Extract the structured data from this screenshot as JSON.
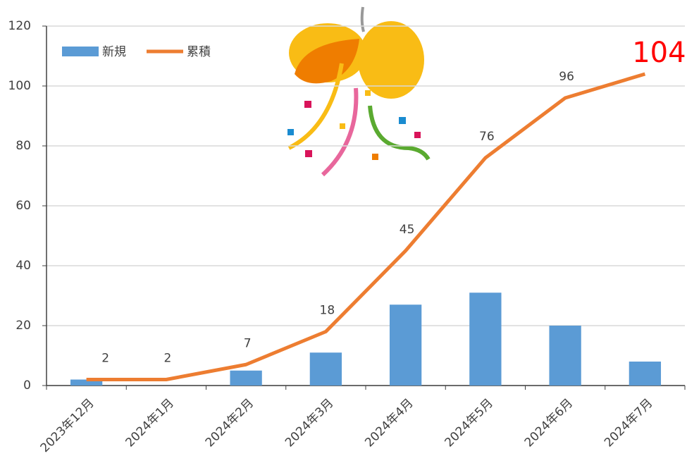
{
  "chart_data": {
    "type": "combo",
    "categories": [
      "2023年12月",
      "2024年1月",
      "2024年2月",
      "2024年3月",
      "2024年4月",
      "2024年5月",
      "2024年6月",
      "2024年7月"
    ],
    "series": [
      {
        "name": "新規",
        "type": "bar",
        "color": "#5b9bd5",
        "values": [
          2,
          0,
          5,
          11,
          27,
          31,
          20,
          8
        ]
      },
      {
        "name": "累積",
        "type": "line",
        "color": "#ed7d31",
        "values": [
          2,
          2,
          7,
          18,
          45,
          76,
          96,
          104
        ]
      }
    ],
    "ylim": [
      0,
      120
    ],
    "yticks": [
      0,
      20,
      40,
      60,
      80,
      100,
      120
    ],
    "grid": true,
    "legend": "upper left"
  }
}
